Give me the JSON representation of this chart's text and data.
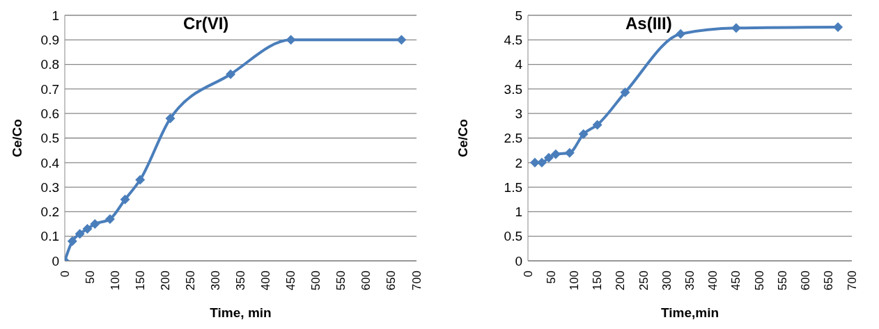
{
  "chart_data": [
    {
      "type": "line",
      "title": "Cr(VI)",
      "xlabel": "Time, min",
      "ylabel": "Ce/Co",
      "xlim": [
        0,
        700
      ],
      "xticks": [
        0,
        50,
        100,
        150,
        200,
        250,
        300,
        350,
        400,
        450,
        500,
        550,
        600,
        650,
        700
      ],
      "ylim": [
        0,
        1
      ],
      "yticks": [
        0,
        0.1,
        0.2,
        0.3,
        0.4,
        0.5,
        0.6,
        0.7,
        0.8,
        0.9,
        1
      ],
      "grid": "y",
      "legend": false,
      "marker": "diamond",
      "line_style": "solid",
      "series": [
        {
          "color": "#4a7ebb",
          "x": [
            0,
            15,
            30,
            45,
            60,
            90,
            120,
            150,
            210,
            330,
            450,
            670
          ],
          "values": [
            0,
            0.08,
            0.11,
            0.13,
            0.15,
            0.17,
            0.25,
            0.33,
            0.58,
            0.76,
            0.9,
            0.9
          ]
        }
      ]
    },
    {
      "type": "line",
      "title": "As(III)",
      "xlabel": "Time,min",
      "ylabel": "Ce/Co",
      "xlim": [
        0,
        700
      ],
      "xticks": [
        0,
        50,
        100,
        150,
        200,
        250,
        300,
        350,
        400,
        450,
        500,
        550,
        600,
        650,
        700
      ],
      "ylim": [
        0,
        5
      ],
      "yticks": [
        0,
        0.5,
        1,
        1.5,
        2,
        2.5,
        3,
        3.5,
        4,
        4.5,
        5
      ],
      "grid": "y",
      "legend": false,
      "marker": "diamond",
      "line_style": "solid",
      "series": [
        {
          "color": "#4a7ebb",
          "x": [
            15,
            30,
            45,
            60,
            90,
            120,
            150,
            210,
            330,
            450,
            670
          ],
          "values": [
            2.0,
            2.0,
            2.1,
            2.17,
            2.2,
            2.58,
            2.77,
            3.43,
            4.62,
            4.74,
            4.76
          ]
        }
      ]
    }
  ]
}
